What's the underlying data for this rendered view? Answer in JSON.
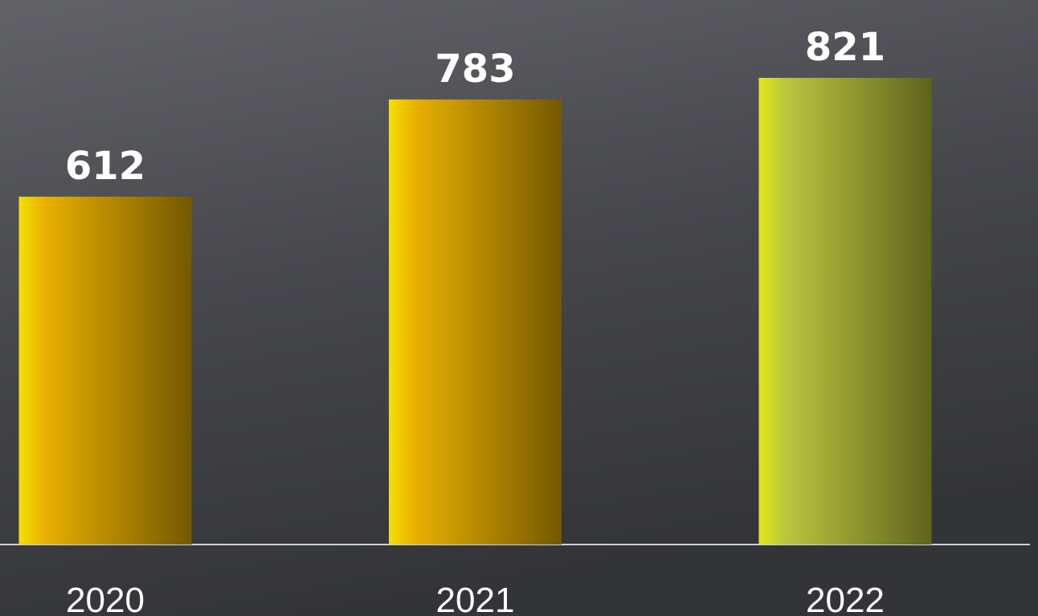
{
  "chart_data": {
    "type": "bar",
    "categories": [
      "2020",
      "2021",
      "2022"
    ],
    "values": [
      612,
      783,
      821
    ],
    "colors": [
      "#e8b000",
      "#e8b000",
      "#bcc63e"
    ],
    "ylim": [
      0,
      958
    ]
  }
}
